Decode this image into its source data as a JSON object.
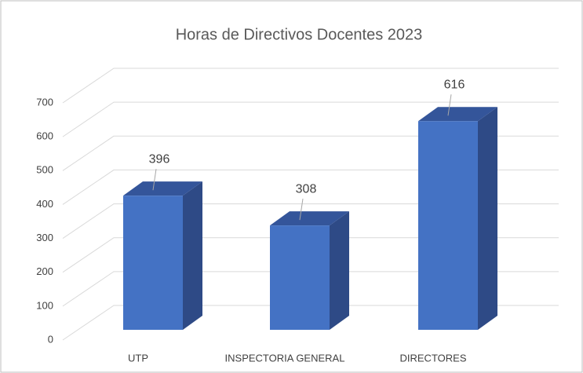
{
  "chart_data": {
    "type": "bar3d",
    "title": "Horas de Directivos Docentes 2023",
    "categories": [
      "UTP",
      "INSPECTORIA GENERAL",
      "DIRECTORES"
    ],
    "values": [
      396,
      308,
      616
    ],
    "color": "#4472c4",
    "ylim": [
      0,
      700
    ],
    "yticks": [
      0,
      100,
      200,
      300,
      400,
      500,
      600,
      700
    ],
    "grid": true
  }
}
